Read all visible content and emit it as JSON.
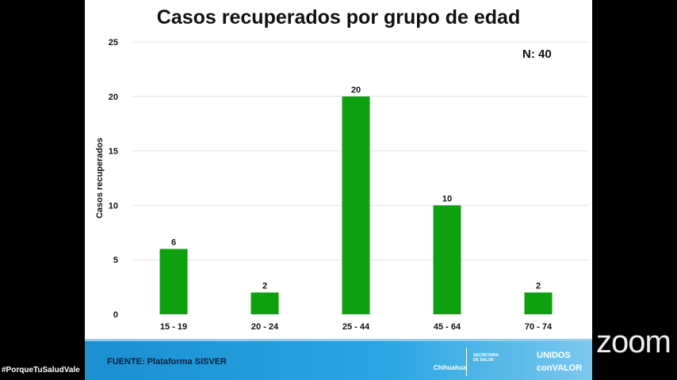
{
  "chart_data": {
    "type": "bar",
    "title": "Casos recuperados por grupo de edad",
    "annotation": "N: 40",
    "categories": [
      "15 - 19",
      "20 - 24",
      "25 - 44",
      "45 - 64",
      "70 - 74"
    ],
    "values": [
      6,
      2,
      20,
      10,
      2
    ],
    "xlabel": "",
    "ylabel": "Casos recuperados",
    "ylim": [
      0,
      25
    ],
    "yticks": [
      0,
      5,
      10,
      15,
      20,
      25
    ],
    "grid": true,
    "bar_color": "#0ea00e"
  },
  "footer": {
    "source": "FUENTE: Plataforma SISVER",
    "logo1": "Chihuahua",
    "logo2": "SECRETARIA DE SALUD",
    "logo3a": "UNIDOS",
    "logo3b": "conVALOR"
  },
  "overlay": {
    "hashtag": "#PorqueTuSaludVale",
    "zoom": "zoom"
  }
}
